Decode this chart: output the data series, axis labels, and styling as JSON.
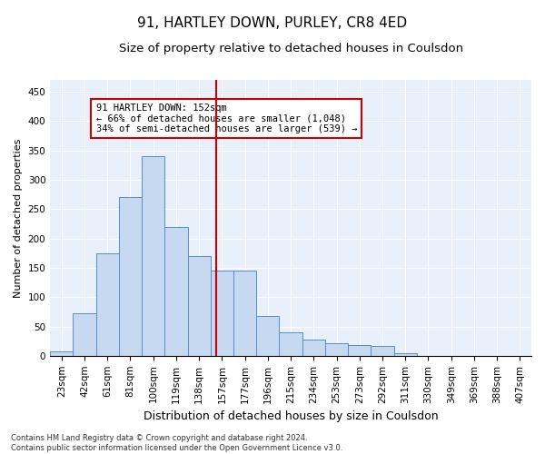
{
  "title": "91, HARTLEY DOWN, PURLEY, CR8 4ED",
  "subtitle": "Size of property relative to detached houses in Coulsdon",
  "xlabel": "Distribution of detached houses by size in Coulsdon",
  "ylabel": "Number of detached properties",
  "categories": [
    "23sqm",
    "42sqm",
    "61sqm",
    "81sqm",
    "100sqm",
    "119sqm",
    "138sqm",
    "157sqm",
    "177sqm",
    "196sqm",
    "215sqm",
    "234sqm",
    "253sqm",
    "273sqm",
    "292sqm",
    "311sqm",
    "330sqm",
    "349sqm",
    "369sqm",
    "388sqm",
    "407sqm"
  ],
  "values": [
    8,
    72,
    175,
    270,
    340,
    220,
    170,
    145,
    145,
    68,
    40,
    27,
    22,
    18,
    17,
    5,
    0,
    0,
    0,
    0,
    0
  ],
  "bar_color": "#c6d9f1",
  "bar_edge_color": "#5b8bc9",
  "vline_color": "#cc0000",
  "annotation_text": "91 HARTLEY DOWN: 152sqm\n← 66% of detached houses are smaller (1,048)\n34% of semi-detached houses are larger (539) →",
  "annotation_box_color": "white",
  "annotation_box_edge_color": "#cc0000",
  "ylim": [
    0,
    470
  ],
  "yticks": [
    0,
    50,
    100,
    150,
    200,
    250,
    300,
    350,
    400,
    450
  ],
  "footnote": "Contains HM Land Registry data © Crown copyright and database right 2024.\nContains public sector information licensed under the Open Government Licence v3.0.",
  "title_fontsize": 11,
  "subtitle_fontsize": 9.5,
  "xlabel_fontsize": 9,
  "ylabel_fontsize": 8,
  "tick_fontsize": 7.5,
  "annot_fontsize": 7.5,
  "background_color": "#e8f0fb",
  "grid_color": "white",
  "fig_bg": "white"
}
